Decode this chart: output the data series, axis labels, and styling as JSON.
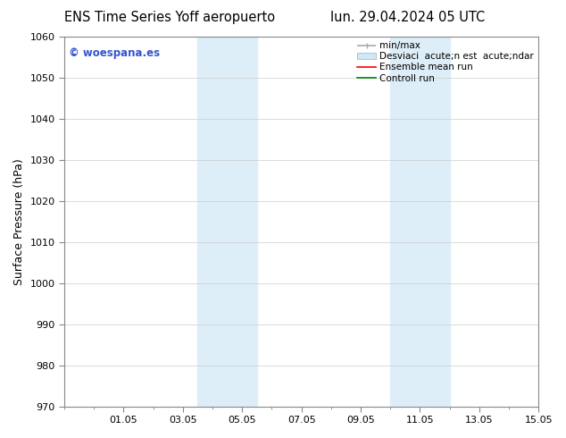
{
  "title_left": "ENS Time Series Yoff aeropuerto",
  "title_right": "lun. 29.04.2024 05 UTC",
  "ylabel": "Surface Pressure (hPa)",
  "ylim": [
    970,
    1060
  ],
  "yticks": [
    970,
    980,
    990,
    1000,
    1010,
    1020,
    1030,
    1040,
    1050,
    1060
  ],
  "xtick_labels": [
    "01.05",
    "03.05",
    "05.05",
    "07.05",
    "09.05",
    "11.05",
    "13.05",
    "15.05"
  ],
  "xtick_positions": [
    2,
    4,
    6,
    8,
    10,
    12,
    14,
    16
  ],
  "xlim": [
    0,
    16
  ],
  "shaded_color": "#ddeef8",
  "shaded_regions": [
    {
      "xmin": 4.5,
      "xmax": 6.5
    },
    {
      "xmin": 11.0,
      "xmax": 13.0
    }
  ],
  "watermark_text": "© woespana.es",
  "watermark_color": "#3355cc",
  "bg_color": "#ffffff",
  "grid_color": "#cccccc",
  "title_fontsize": 10.5,
  "ylabel_fontsize": 9,
  "tick_fontsize": 8,
  "legend_fontsize": 7.5,
  "legend_labels": [
    "min/max",
    "Desviaci  acute;n est  acute;ndar",
    "Ensemble mean run",
    "Controll run"
  ],
  "legend_colors": [
    "#999999",
    "#ccddee",
    "red",
    "green"
  ]
}
